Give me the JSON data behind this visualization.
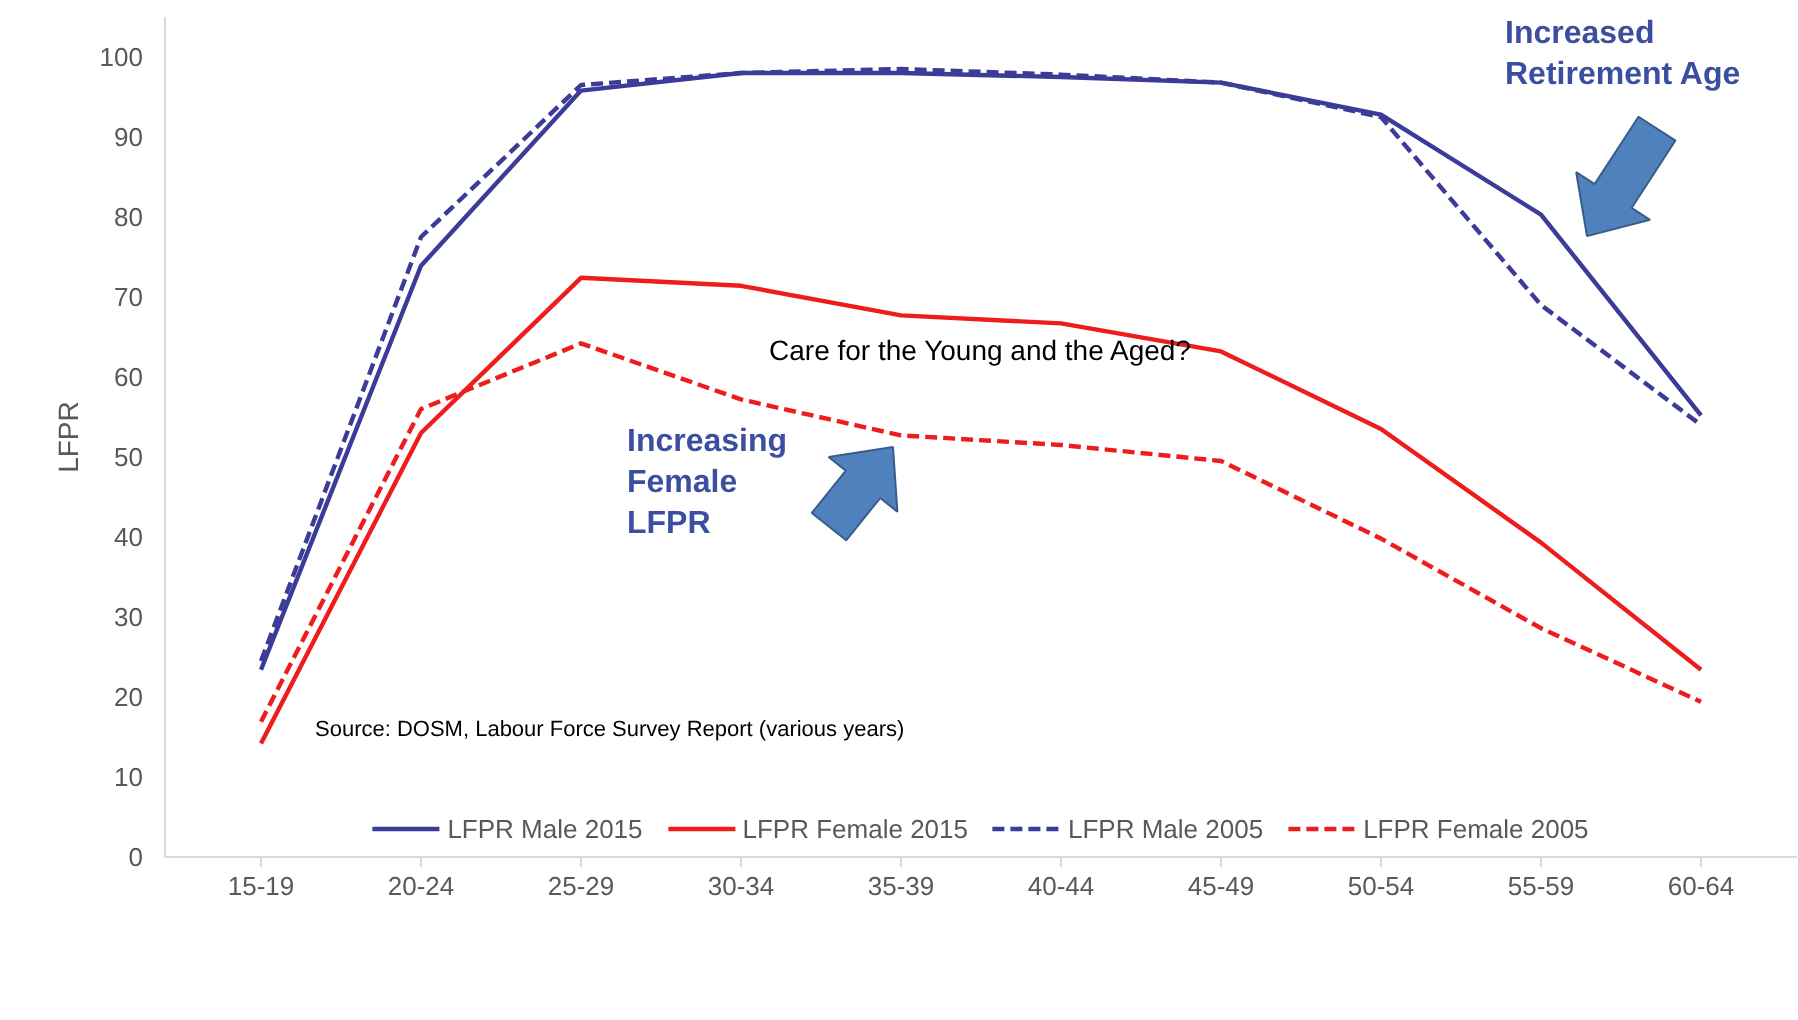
{
  "chart_data": {
    "type": "line",
    "ylabel": "LFPR",
    "categories": [
      "15-19",
      "20-24",
      "25-29",
      "30-34",
      "35-39",
      "40-44",
      "45-49",
      "50-54",
      "55-59",
      "60-64"
    ],
    "series": [
      {
        "name": "LFPR Male 2015",
        "color": "#3b3b98",
        "line_style": "solid",
        "values": [
          23.4,
          73.9,
          95.8,
          98,
          98,
          97.5,
          96.8,
          92.8,
          80.3,
          55.2
        ]
      },
      {
        "name": "LFPR Female 2015",
        "color": "#ee1c1c",
        "line_style": "solid",
        "values": [
          14.2,
          53,
          72.4,
          71.4,
          67.7,
          66.7,
          63.2,
          53.5,
          39.3,
          23.4
        ]
      },
      {
        "name": "LFPR Male 2005",
        "color": "#3b3b98",
        "line_style": "dashed",
        "values": [
          24.5,
          77.5,
          96.5,
          98,
          98.5,
          97.8,
          96.8,
          92.5,
          69,
          54
        ]
      },
      {
        "name": "LFPR Female 2005",
        "color": "#ee1c1c",
        "line_style": "dashed",
        "values": [
          16.9,
          56,
          64.2,
          57.2,
          52.7,
          51.5,
          49.5,
          39.8,
          28.6,
          19.4
        ]
      }
    ],
    "ylim": [
      0,
      105
    ],
    "yticks": [
      0,
      10,
      20,
      30,
      40,
      50,
      60,
      70,
      80,
      90,
      100
    ],
    "legend": "bottom",
    "annotations": [
      "Increased\nRetirement Age",
      "Care for the Young and the Aged?",
      "Increasing\nFemale\nLFPR",
      "Source: DOSM, Labour Force Survey Report (various years)"
    ]
  }
}
